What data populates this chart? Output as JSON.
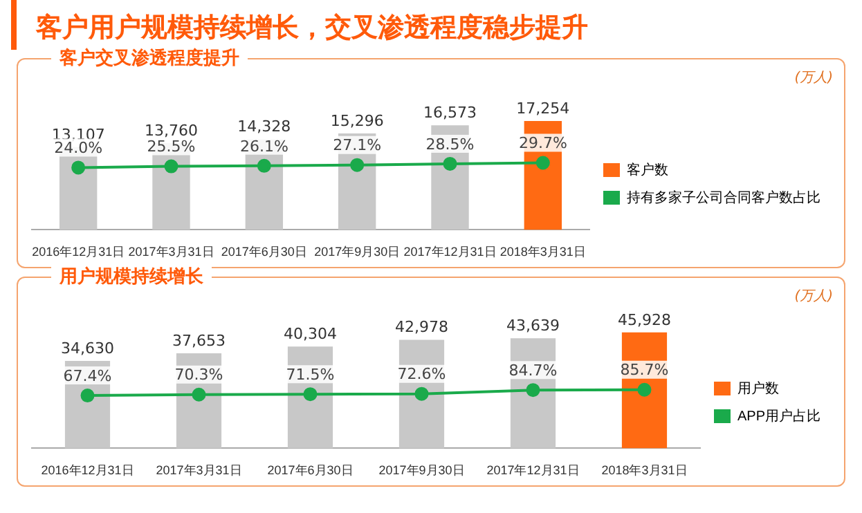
{
  "chart_data": [
    {
      "type": "bar",
      "title": "客户用户规模持续增长，交叉渗透程度稳步提升",
      "subtitle": "客户交叉渗透程度提升",
      "annotations": [
        "(万人)"
      ],
      "legend": "right",
      "categories": [
        "2016年12月31日",
        "2017年3月31日",
        "2017年6月30日",
        "2017年9月30日",
        "2017年12月31日",
        "2018年3月31日"
      ],
      "series": [
        {
          "name": "客户数",
          "color": "#ff6a13",
          "colors": [
            "#c8c8c8",
            "#c8c8c8",
            "#c8c8c8",
            "#c8c8c8",
            "#c8c8c8",
            "#ff6a13"
          ],
          "values": [
            13107,
            13760,
            14328,
            15296,
            16573,
            17254
          ],
          "value_labels": [
            "13,107",
            "13,760",
            "14,328",
            "15,296",
            "16,573",
            "17,254"
          ]
        },
        {
          "name": "持有多家子公司合同客户数占比",
          "type": "line",
          "axis": "y2",
          "color": "#1aaa4b",
          "values": [
            24.0,
            25.5,
            26.1,
            27.1,
            28.5,
            29.7
          ],
          "value_labels": [
            "24.0%",
            "25.5%",
            "26.1%",
            "27.1%",
            "28.5%",
            "29.7%"
          ]
        }
      ],
      "marker": "circle"
    },
    {
      "type": "bar",
      "title": "用户规模持续增长",
      "annotations": [
        "(万人)"
      ],
      "legend": "right",
      "categories": [
        "2016年12月31日",
        "2017年3月31日",
        "2017年6月30日",
        "2017年9月30日",
        "2017年12月31日",
        "2018年3月31日"
      ],
      "series": [
        {
          "name": "用户数",
          "color": "#ff6a13",
          "colors": [
            "#c8c8c8",
            "#c8c8c8",
            "#c8c8c8",
            "#c8c8c8",
            "#c8c8c8",
            "#ff6a13"
          ],
          "values": [
            34630,
            37653,
            40304,
            42978,
            43639,
            45928
          ],
          "value_labels": [
            "34,630",
            "37,653",
            "40,304",
            "42,978",
            "43,639",
            "45,928"
          ]
        },
        {
          "name": "APP用户占比",
          "type": "line",
          "axis": "y2",
          "color": "#1aaa4b",
          "values": [
            67.4,
            70.3,
            71.5,
            72.6,
            84.7,
            85.7
          ],
          "value_labels": [
            "67.4%",
            "70.3%",
            "71.5%",
            "72.6%",
            "84.7%",
            "85.7%"
          ]
        }
      ],
      "marker": "circle"
    }
  ]
}
